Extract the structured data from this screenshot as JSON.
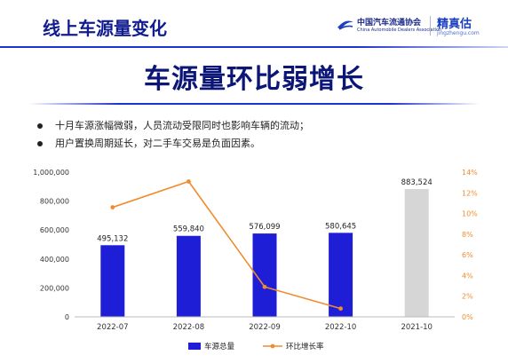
{
  "header": {
    "title": "线上车源量变化",
    "logo_cada_cn": "中国汽车流通协会",
    "logo_cada_en": "China Automobile Dealers Association",
    "logo_jzg_cn": "精真估",
    "logo_jzg_en": "jingzhengu.com"
  },
  "slide_title": "车源量环比弱增长",
  "bullets": [
    "十月车源涨幅微弱，人员流动受限同时也影响车辆的流动；",
    "用户置换周期延长，对二手车交易是负面因素。"
  ],
  "colors": {
    "bar_blue": "#1e1ed6",
    "bar_gray": "#d6d6d6",
    "line_orange": "#f08c2e",
    "title_navy": "#0b1677"
  },
  "chart_data": {
    "type": "bar",
    "categories": [
      "2022-07",
      "2022-08",
      "2022-09",
      "2022-10",
      "2021-10"
    ],
    "series": [
      {
        "name": "车源总量",
        "type": "bar",
        "axis": "left",
        "values": [
          495132,
          559840,
          576099,
          580645,
          883524
        ],
        "value_labels": [
          "495,132",
          "559,840",
          "576,099",
          "580,645",
          "883,524"
        ]
      },
      {
        "name": "环比增长率",
        "type": "line",
        "axis": "right",
        "values": [
          10.6,
          13.1,
          2.9,
          0.8,
          null
        ]
      }
    ],
    "left_axis": {
      "ylim": [
        0,
        1000000
      ],
      "ticks": [
        0,
        200000,
        400000,
        600000,
        800000,
        1000000
      ],
      "tick_labels": [
        "0",
        "200,000",
        "400,000",
        "600,000",
        "800,000",
        "1,000,000"
      ]
    },
    "right_axis": {
      "ylim": [
        0,
        14
      ],
      "ticks": [
        0,
        2,
        4,
        6,
        8,
        10,
        12,
        14
      ],
      "tick_labels": [
        "0%",
        "2%",
        "4%",
        "6%",
        "8%",
        "10%",
        "12%",
        "14%"
      ]
    },
    "legend_position": "bottom",
    "grid": false,
    "highlight_last_category": true
  }
}
